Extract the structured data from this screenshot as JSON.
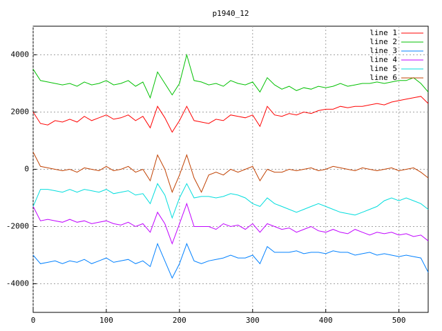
{
  "chart_data": {
    "type": "line",
    "title": "p1940_12",
    "x": [
      0,
      10,
      20,
      30,
      40,
      50,
      60,
      70,
      80,
      90,
      100,
      110,
      120,
      130,
      140,
      150,
      160,
      170,
      180,
      190,
      200,
      210,
      220,
      230,
      240,
      250,
      260,
      270,
      280,
      290,
      300,
      310,
      320,
      330,
      340,
      350,
      360,
      370,
      380,
      390,
      400,
      410,
      420,
      430,
      440,
      450,
      460,
      470,
      480,
      490,
      500,
      510,
      520,
      530,
      540
    ],
    "xlim": [
      0,
      540
    ],
    "ylim": [
      -5000,
      5000
    ],
    "xticks": [
      0,
      100,
      200,
      300,
      400,
      500
    ],
    "yticks": [
      -4000,
      -2000,
      0,
      2000,
      4000
    ],
    "grid": true,
    "legend": "top-right",
    "series": [
      {
        "name": "line 1",
        "color": "#ff0000",
        "values": [
          2000,
          1600,
          1550,
          1700,
          1650,
          1750,
          1650,
          1850,
          1700,
          1800,
          1900,
          1750,
          1800,
          1900,
          1700,
          1850,
          1450,
          2200,
          1800,
          1300,
          1700,
          2200,
          1700,
          1650,
          1600,
          1750,
          1700,
          1900,
          1850,
          1800,
          1900,
          1500,
          2200,
          1900,
          1850,
          1950,
          1900,
          2000,
          1950,
          2050,
          2100,
          2100,
          2200,
          2150,
          2200,
          2200,
          2250,
          2300,
          2250,
          2350,
          2400,
          2450,
          2500,
          2550,
          2300
        ]
      },
      {
        "name": "line 2",
        "color": "#00c000",
        "values": [
          3500,
          3100,
          3050,
          3000,
          2950,
          3000,
          2900,
          3050,
          2950,
          3000,
          3100,
          2950,
          3000,
          3100,
          2900,
          3050,
          2500,
          3400,
          3000,
          2600,
          3000,
          4000,
          3100,
          3050,
          2950,
          3000,
          2900,
          3100,
          3000,
          2950,
          3050,
          2700,
          3200,
          2950,
          2800,
          2900,
          2750,
          2850,
          2800,
          2900,
          2850,
          2900,
          3000,
          2900,
          2950,
          3000,
          3000,
          3050,
          3000,
          3050,
          3100,
          3100,
          3200,
          3000,
          2700
        ]
      },
      {
        "name": "line 3",
        "color": "#0080ff",
        "values": [
          -3000,
          -3300,
          -3250,
          -3200,
          -3300,
          -3200,
          -3250,
          -3150,
          -3300,
          -3200,
          -3100,
          -3250,
          -3200,
          -3150,
          -3300,
          -3200,
          -3400,
          -2600,
          -3200,
          -3800,
          -3300,
          -2600,
          -3200,
          -3300,
          -3200,
          -3150,
          -3100,
          -3000,
          -3100,
          -3100,
          -3000,
          -3300,
          -2700,
          -2900,
          -2900,
          -2900,
          -2850,
          -2950,
          -2900,
          -2900,
          -2950,
          -2850,
          -2900,
          -2900,
          -3000,
          -2950,
          -2900,
          -3000,
          -2950,
          -3000,
          -3050,
          -3000,
          -3050,
          -3100,
          -3600
        ]
      },
      {
        "name": "line 4",
        "color": "#c000ff",
        "values": [
          -1300,
          -1800,
          -1750,
          -1800,
          -1850,
          -1750,
          -1850,
          -1800,
          -1900,
          -1850,
          -1800,
          -1900,
          -1950,
          -1850,
          -2000,
          -1900,
          -2200,
          -1500,
          -1900,
          -2600,
          -1900,
          -1200,
          -2000,
          -2000,
          -2000,
          -2100,
          -1900,
          -2000,
          -1950,
          -2100,
          -1900,
          -2200,
          -1900,
          -2000,
          -2100,
          -2050,
          -2200,
          -2100,
          -2000,
          -2150,
          -2200,
          -2100,
          -2200,
          -2250,
          -2100,
          -2200,
          -2300,
          -2200,
          -2250,
          -2200,
          -2300,
          -2250,
          -2350,
          -2300,
          -2500
        ]
      },
      {
        "name": "line 5",
        "color": "#00dddd",
        "values": [
          -1300,
          -700,
          -700,
          -750,
          -800,
          -700,
          -800,
          -700,
          -750,
          -800,
          -700,
          -850,
          -800,
          -750,
          -900,
          -850,
          -1200,
          -500,
          -900,
          -1700,
          -1000,
          -500,
          -1000,
          -950,
          -950,
          -1000,
          -950,
          -850,
          -900,
          -1000,
          -1200,
          -1300,
          -1000,
          -1200,
          -1300,
          -1400,
          -1500,
          -1400,
          -1300,
          -1200,
          -1300,
          -1400,
          -1500,
          -1550,
          -1600,
          -1500,
          -1400,
          -1300,
          -1100,
          -1000,
          -1100,
          -1000,
          -1100,
          -1200,
          -1400
        ]
      },
      {
        "name": "line 6",
        "color": "#c04000",
        "values": [
          600,
          100,
          50,
          0,
          -50,
          0,
          -100,
          50,
          0,
          -50,
          100,
          -50,
          0,
          100,
          -100,
          0,
          -400,
          500,
          0,
          -800,
          -200,
          500,
          -300,
          -800,
          -200,
          -100,
          -200,
          0,
          -100,
          0,
          100,
          -400,
          0,
          -100,
          -100,
          0,
          -50,
          0,
          50,
          -50,
          0,
          100,
          50,
          0,
          -50,
          50,
          0,
          -50,
          0,
          50,
          -50,
          0,
          50,
          -100,
          -300
        ]
      }
    ]
  }
}
